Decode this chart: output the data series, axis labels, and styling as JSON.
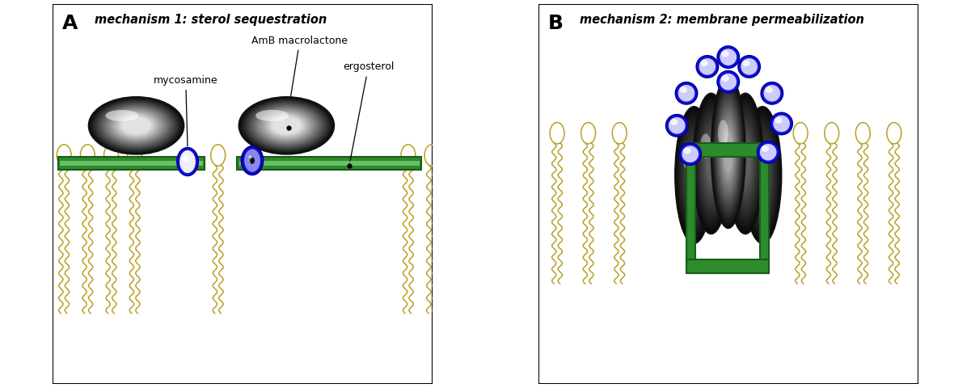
{
  "fig_width": 12.01,
  "fig_height": 4.8,
  "dpi": 100,
  "bg_color": "#ffffff",
  "panel_A_title": "mechanism 1: sterol sequestration",
  "panel_B_title": "mechanism 2: membrane permeabilization",
  "label_A": "A",
  "label_B": "B",
  "lipid_color": "#b8a025",
  "membrane_green": "#2d8a2d",
  "membrane_light": "#88dd88",
  "label_mycosamine": "mycosamine",
  "label_amb": "AmB macrolactone",
  "label_ergosterol": "ergosterol"
}
